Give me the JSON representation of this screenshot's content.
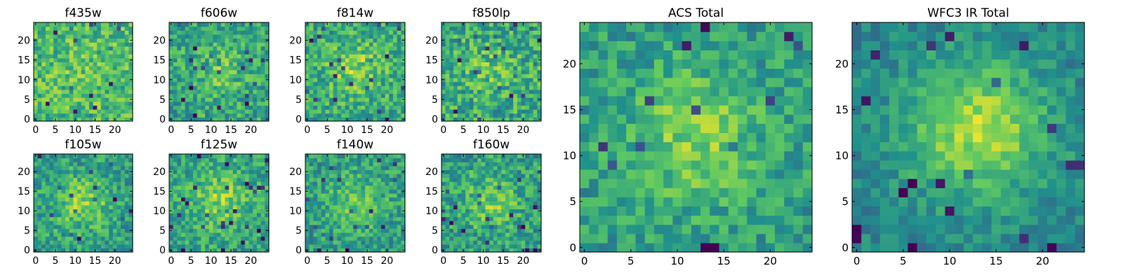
{
  "chart_data": [
    {
      "type": "heatmap",
      "title": "f435w",
      "grid_size": 25,
      "xlim": [
        -0.5,
        24.5
      ],
      "ylim": [
        -0.5,
        24.5
      ],
      "xticks": [
        0,
        5,
        10,
        15,
        20
      ],
      "yticks": [
        0,
        5,
        10,
        15,
        20
      ],
      "colormap": "viridis",
      "center": [
        12,
        12
      ],
      "peak_strength": 0.05,
      "peak_width": 5.0,
      "base_level": 0.68,
      "noise_level": 0.2,
      "seed": 11
    },
    {
      "type": "heatmap",
      "title": "f606w",
      "grid_size": 25,
      "xlim": [
        -0.5,
        24.5
      ],
      "ylim": [
        -0.5,
        24.5
      ],
      "xticks": [
        0,
        5,
        10,
        15,
        20
      ],
      "yticks": [
        0,
        5,
        10,
        15,
        20
      ],
      "colormap": "viridis",
      "center": [
        12,
        12
      ],
      "peak_strength": 0.15,
      "peak_width": 5.0,
      "base_level": 0.58,
      "noise_level": 0.2,
      "seed": 23
    },
    {
      "type": "heatmap",
      "title": "f814w",
      "grid_size": 25,
      "xlim": [
        -0.5,
        24.5
      ],
      "ylim": [
        -0.5,
        24.5
      ],
      "xticks": [
        0,
        5,
        10,
        15,
        20
      ],
      "yticks": [
        0,
        5,
        10,
        15,
        20
      ],
      "colormap": "viridis",
      "center": [
        12,
        13
      ],
      "peak_strength": 0.2,
      "peak_width": 5.0,
      "base_level": 0.6,
      "noise_level": 0.2,
      "seed": 37
    },
    {
      "type": "heatmap",
      "title": "f850lp",
      "grid_size": 25,
      "xlim": [
        -0.5,
        24.5
      ],
      "ylim": [
        -0.5,
        24.5
      ],
      "xticks": [
        0,
        5,
        10,
        15,
        20
      ],
      "yticks": [
        0,
        5,
        10,
        15,
        20
      ],
      "colormap": "viridis",
      "center": [
        12,
        12
      ],
      "peak_strength": 0.12,
      "peak_width": 5.0,
      "base_level": 0.6,
      "noise_level": 0.22,
      "seed": 41
    },
    {
      "type": "heatmap",
      "title": "f105w",
      "grid_size": 25,
      "xlim": [
        -0.5,
        24.5
      ],
      "ylim": [
        -0.5,
        24.5
      ],
      "xticks": [
        0,
        5,
        10,
        15,
        20
      ],
      "yticks": [
        0,
        5,
        10,
        15,
        20
      ],
      "colormap": "viridis",
      "center": [
        12,
        12
      ],
      "peak_strength": 0.25,
      "peak_width": 5.0,
      "base_level": 0.55,
      "noise_level": 0.18,
      "seed": 53
    },
    {
      "type": "heatmap",
      "title": "f125w",
      "grid_size": 25,
      "xlim": [
        -0.5,
        24.5
      ],
      "ylim": [
        -0.5,
        24.5
      ],
      "xticks": [
        0,
        5,
        10,
        15,
        20
      ],
      "yticks": [
        0,
        5,
        10,
        15,
        20
      ],
      "colormap": "viridis",
      "center": [
        12,
        13
      ],
      "peak_strength": 0.22,
      "peak_width": 5.0,
      "base_level": 0.58,
      "noise_level": 0.18,
      "seed": 67
    },
    {
      "type": "heatmap",
      "title": "f140w",
      "grid_size": 25,
      "xlim": [
        -0.5,
        24.5
      ],
      "ylim": [
        -0.5,
        24.5
      ],
      "xticks": [
        0,
        5,
        10,
        15,
        20
      ],
      "yticks": [
        0,
        5,
        10,
        15,
        20
      ],
      "colormap": "viridis",
      "center": [
        12,
        12
      ],
      "peak_strength": 0.2,
      "peak_width": 5.0,
      "base_level": 0.55,
      "noise_level": 0.18,
      "seed": 79
    },
    {
      "type": "heatmap",
      "title": "f160w",
      "grid_size": 25,
      "xlim": [
        -0.5,
        24.5
      ],
      "ylim": [
        -0.5,
        24.5
      ],
      "xticks": [
        0,
        5,
        10,
        15,
        20
      ],
      "yticks": [
        0,
        5,
        10,
        15,
        20
      ],
      "colormap": "viridis",
      "center": [
        12,
        12
      ],
      "peak_strength": 0.2,
      "peak_width": 5.0,
      "base_level": 0.55,
      "noise_level": 0.2,
      "seed": 83
    },
    {
      "type": "heatmap",
      "title": "ACS Total",
      "grid_size": 25,
      "xlim": [
        -0.5,
        24.5
      ],
      "ylim": [
        -0.5,
        24.5
      ],
      "xticks": [
        0,
        5,
        10,
        15,
        20
      ],
      "yticks": [
        0,
        5,
        10,
        15,
        20
      ],
      "colormap": "viridis",
      "center": [
        12,
        12
      ],
      "peak_strength": 0.25,
      "peak_width": 5.0,
      "base_level": 0.55,
      "noise_level": 0.16,
      "seed": 97
    },
    {
      "type": "heatmap",
      "title": "WFC3 IR Total",
      "grid_size": 25,
      "xlim": [
        -0.5,
        24.5
      ],
      "ylim": [
        -0.5,
        24.5
      ],
      "xticks": [
        0,
        5,
        10,
        15,
        20
      ],
      "yticks": [
        0,
        5,
        10,
        15,
        20
      ],
      "colormap": "viridis",
      "center": [
        13,
        13
      ],
      "peak_strength": 0.42,
      "peak_width": 5.5,
      "base_level": 0.45,
      "noise_level": 0.12,
      "seed": 101
    }
  ],
  "colors": {
    "background": "#ffffff",
    "axes_edge": "#000000",
    "colormap_stops": [
      "#440154",
      "#3b528b",
      "#21918c",
      "#5ec962",
      "#fde725"
    ]
  }
}
